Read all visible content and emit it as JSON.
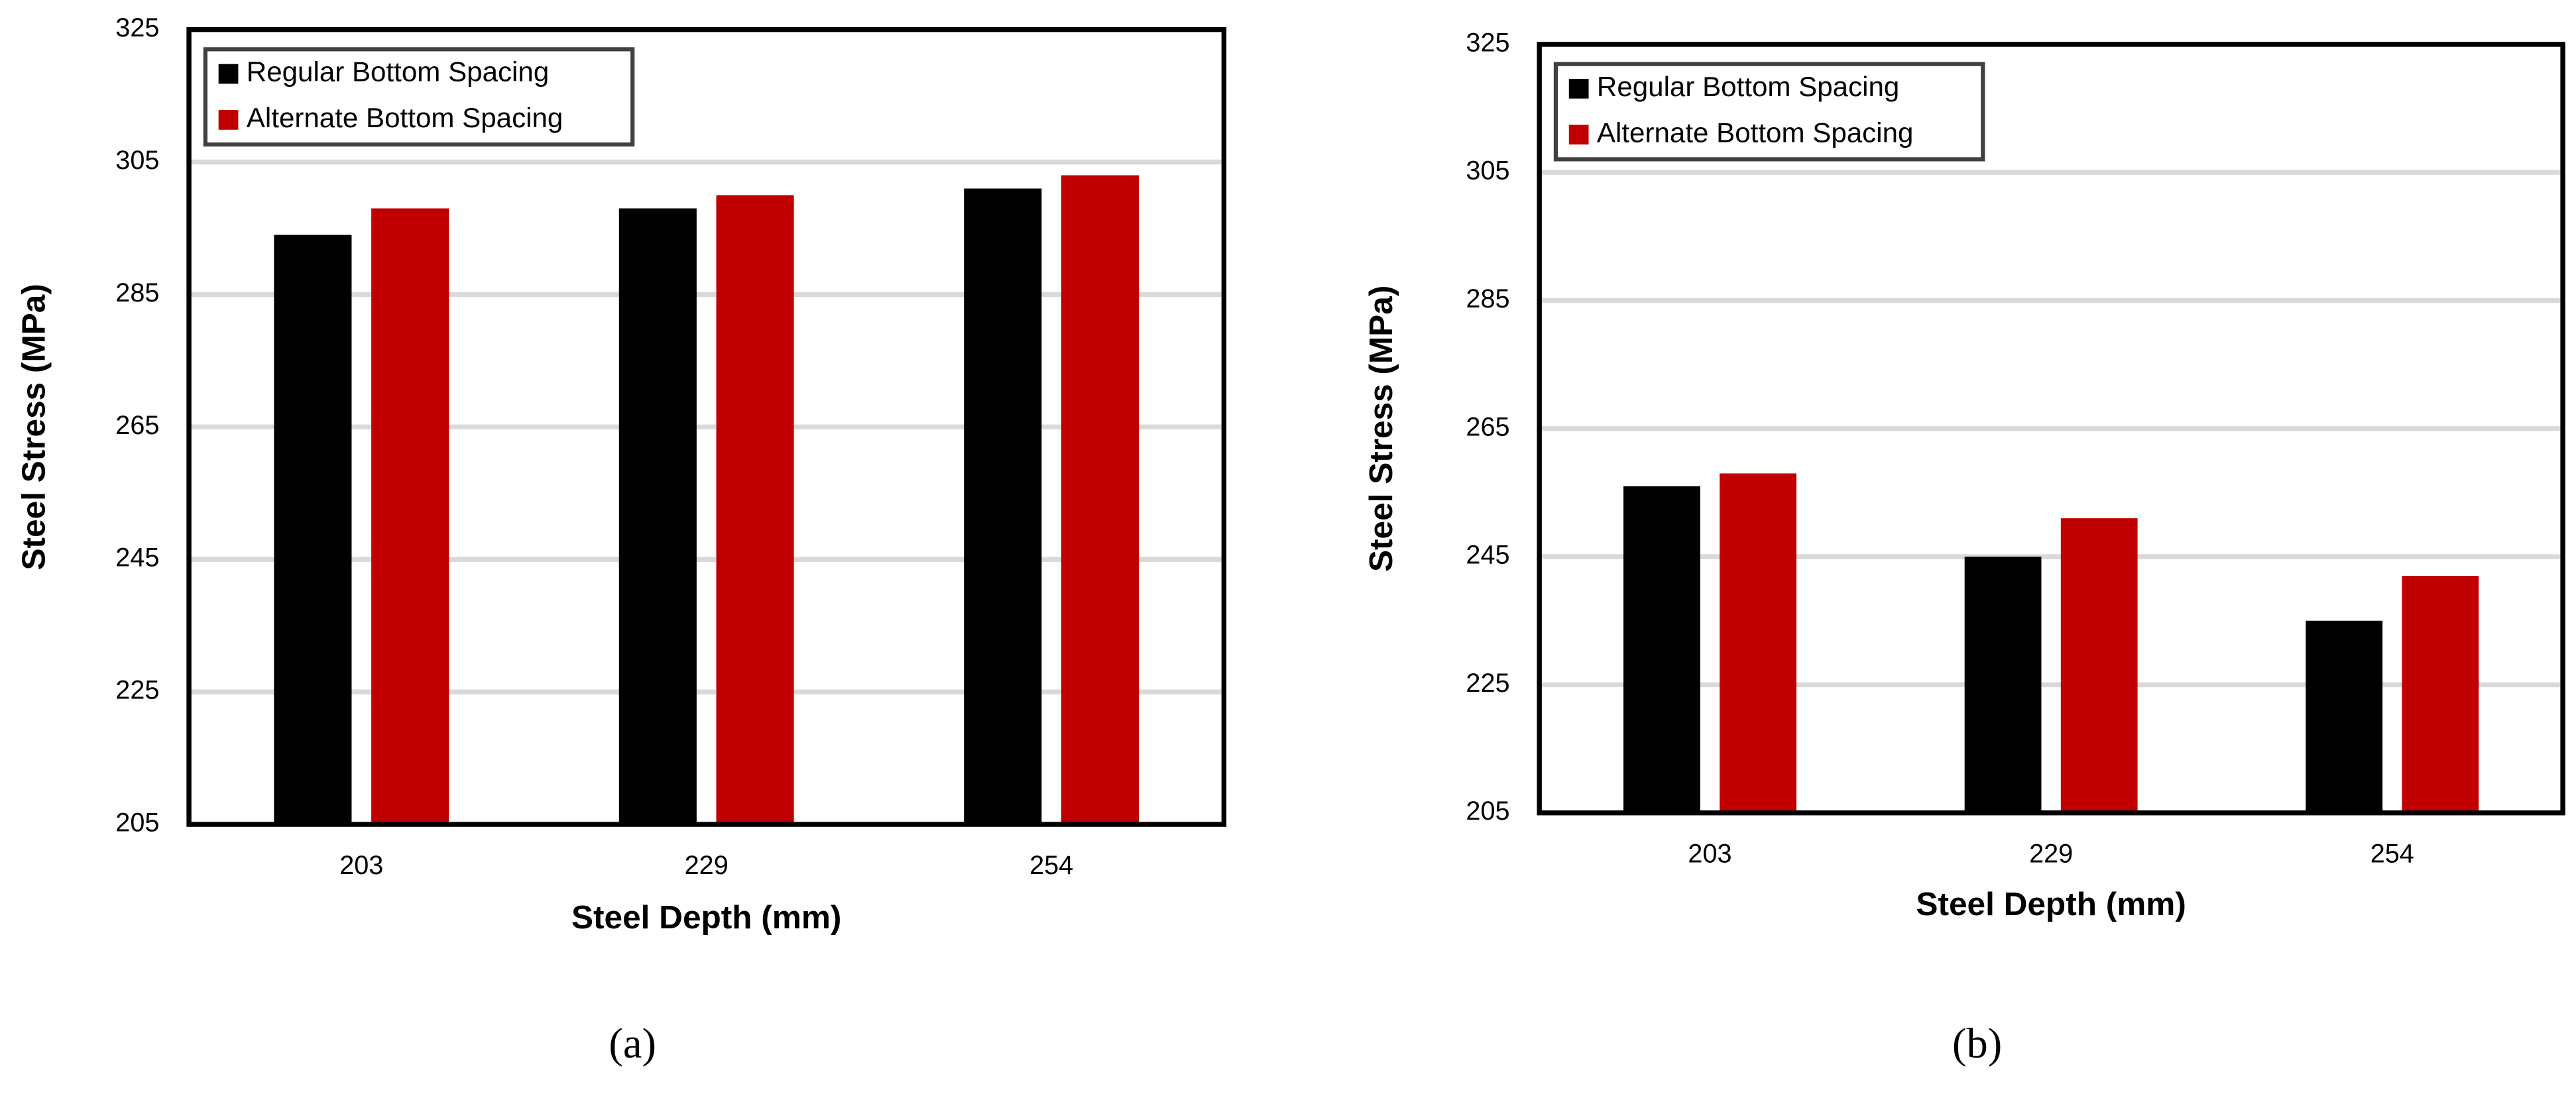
{
  "chart_data": [
    {
      "type": "bar",
      "label": "(a)",
      "x_label": "Steel Depth (mm)",
      "y_label": "Steel Stress (MPa)",
      "categories": [
        "203",
        "229",
        "254"
      ],
      "series": [
        {
          "name": "Regular Bottom Spacing",
          "color": "#000000",
          "values": [
            294,
            298,
            301
          ]
        },
        {
          "name": "Alternate Bottom Spacing",
          "color": "#c00000",
          "values": [
            298,
            300,
            303
          ]
        }
      ],
      "ylim": [
        205,
        325
      ],
      "yticks": [
        205,
        225,
        245,
        265,
        285,
        305,
        325
      ],
      "grid": true,
      "legend": "upper left"
    },
    {
      "type": "bar",
      "label": "(b)",
      "x_label": "Steel Depth (mm)",
      "y_label": "Steel Stress (MPa)",
      "categories": [
        "203",
        "229",
        "254"
      ],
      "series": [
        {
          "name": "Regular Bottom Spacing",
          "color": "#000000",
          "values": [
            256,
            245,
            235
          ]
        },
        {
          "name": "Alternate Bottom Spacing",
          "color": "#c00000",
          "values": [
            258,
            251,
            242
          ]
        }
      ],
      "ylim": [
        205,
        325
      ],
      "yticks": [
        205,
        225,
        245,
        265,
        285,
        305,
        325
      ],
      "grid": true,
      "legend": "upper left"
    }
  ]
}
